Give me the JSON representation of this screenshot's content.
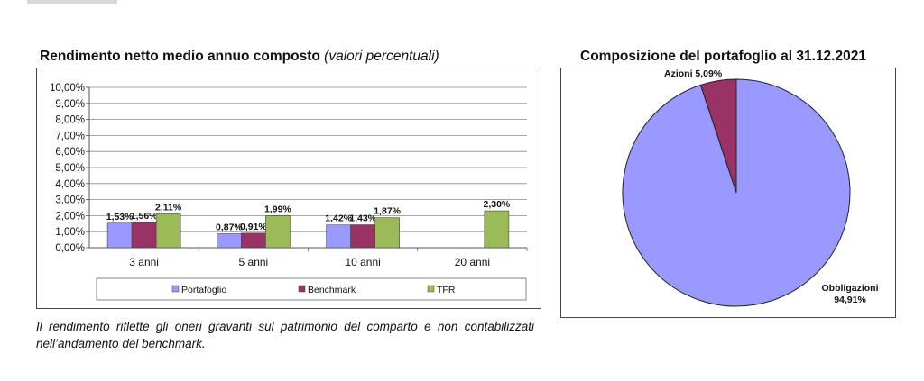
{
  "chart_data": [
    {
      "type": "bar",
      "title": "Rendimento netto medio annuo composto",
      "subtitle": "(valori percentuali)",
      "categories": [
        "3 anni",
        "5 anni",
        "10 anni",
        "20 anni"
      ],
      "series": [
        {
          "name": "Portafoglio",
          "color": "#9999ff",
          "values": [
            1.53,
            0.87,
            1.42,
            null
          ],
          "labels": [
            "1,53%",
            "0,87%",
            "1,42%",
            ""
          ]
        },
        {
          "name": "Benchmark",
          "color": "#993366",
          "values": [
            1.56,
            0.91,
            1.43,
            null
          ],
          "labels": [
            "1,56%",
            "0,91%",
            "1,43%",
            ""
          ]
        },
        {
          "name": "TFR",
          "color": "#9bbb59",
          "values": [
            2.11,
            1.99,
            1.87,
            2.3
          ],
          "labels": [
            "2,11%",
            "1,99%",
            "1,87%",
            "2,30%"
          ]
        }
      ],
      "yticks": [
        "0,00%",
        "1,00%",
        "2,00%",
        "3,00%",
        "4,00%",
        "5,00%",
        "6,00%",
        "7,00%",
        "8,00%",
        "9,00%",
        "10,00%"
      ],
      "ylim": [
        0,
        10
      ],
      "grid": true,
      "legend": "bottom"
    },
    {
      "type": "pie",
      "title": "Composizione del portafoglio al 31.12.2021",
      "slices": [
        {
          "name": "Azioni",
          "label": "5,09%",
          "value": 5.09,
          "color": "#993366"
        },
        {
          "name": "Obbligazioni",
          "label": "94,91%",
          "value": 94.91,
          "color": "#9999ff"
        }
      ]
    }
  ],
  "note": "Il rendimento riflette gli oneri gravanti sul patrimonio del comparto e non contabilizzati nell’andamento del benchmark."
}
